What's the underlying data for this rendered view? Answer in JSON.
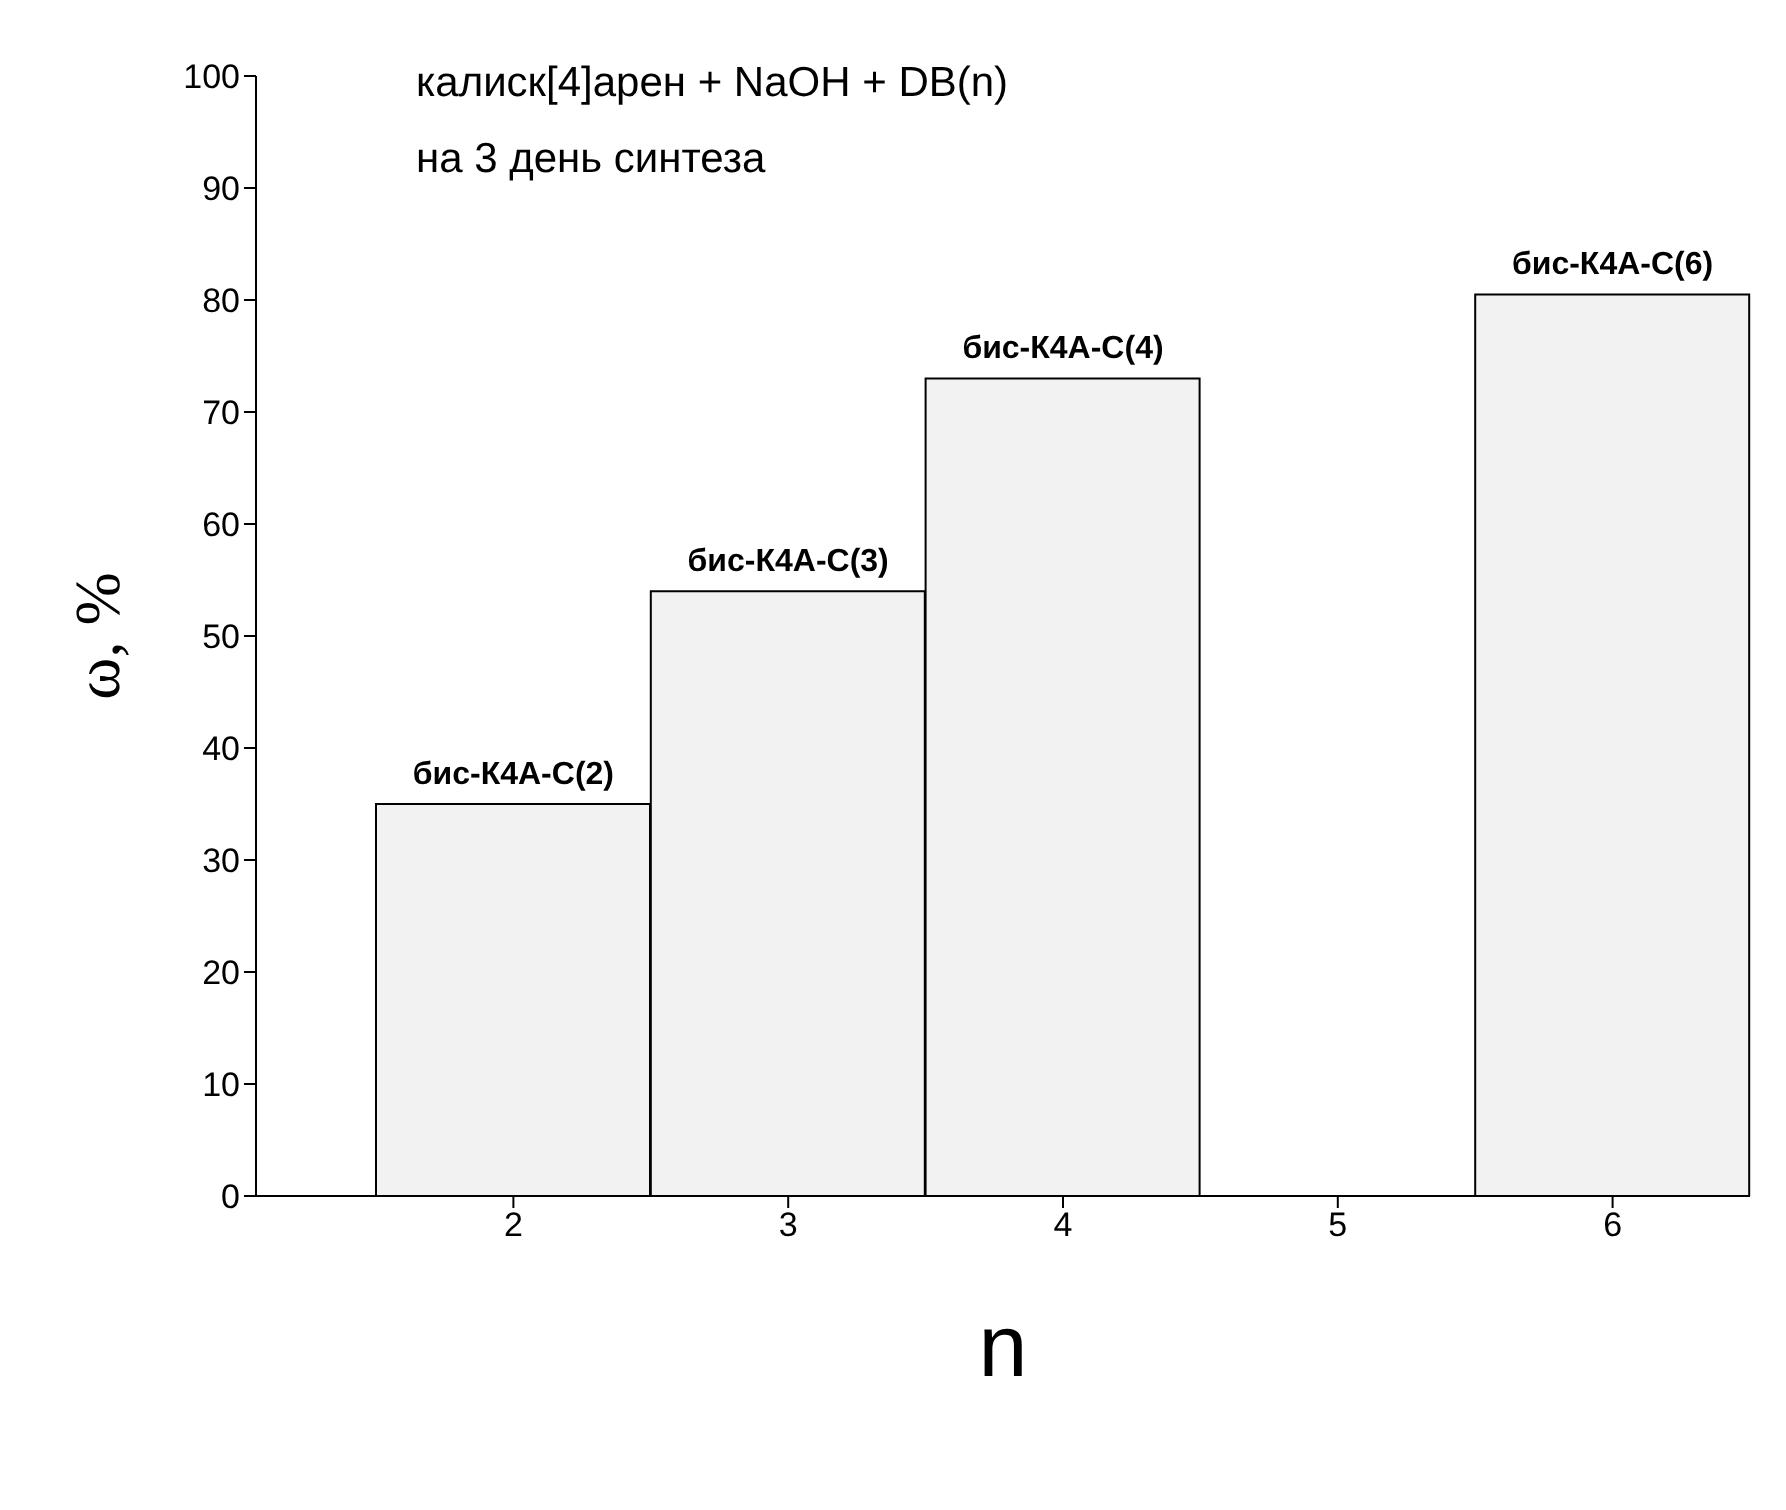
{
  "chart_data": {
    "type": "bar",
    "xlabel": "n",
    "ylabel": "ω, %",
    "categories": [
      "2",
      "3",
      "4",
      "5",
      "6"
    ],
    "values": [
      35,
      54,
      73,
      null,
      80.5
    ],
    "color": "#f2f2f2",
    "ylim": [
      0,
      100
    ],
    "yticks": [
      0,
      10,
      20,
      30,
      40,
      50,
      60,
      70,
      80,
      90,
      100
    ],
    "grid": false,
    "legend": false,
    "annotations": [
      "калиск[4]арен + NaOH + DB(n)",
      "на 3 день синтеза",
      {
        "text": "бис-К4А-С(2)",
        "x": "2",
        "y": 35
      },
      {
        "text": "бис-К4А-С(3)",
        "x": "3",
        "y": 54
      },
      {
        "text": "бис-К4А-С(4)",
        "x": "4",
        "y": 73
      },
      {
        "text": "бис-К4А-С(6)",
        "x": "6",
        "y": 80.5
      }
    ]
  }
}
